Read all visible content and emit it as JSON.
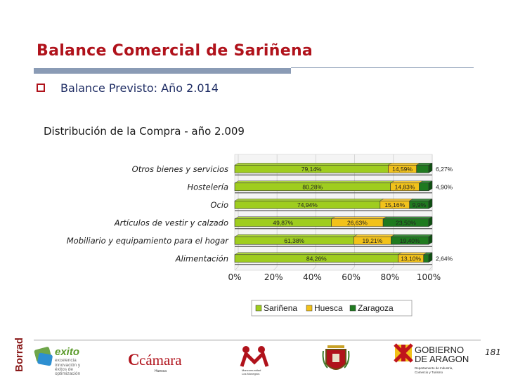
{
  "slide": {
    "title": "Balance Comercial de Sariñena",
    "bullet": "Balance Previsto: Año 2.014",
    "subtitle": "Distribución de la Compra - año 2.009",
    "page_number": "181"
  },
  "footer": {
    "watermark": "Borrador",
    "logos": [
      {
        "name": "exito",
        "text_main": "exito",
        "lines": [
          "excelencia",
          "innovación y",
          "éxitos de",
          "optimización"
        ]
      },
      {
        "name": "camara",
        "text_main": "cámara",
        "sub": "Huesca"
      },
      {
        "name": "mancomunidad",
        "text_main": "M",
        "lines": [
          "Mancomunidad",
          "Los Monegros"
        ]
      },
      {
        "name": "coat-of-arms"
      },
      {
        "name": "gobierno-aragon",
        "lines": [
          "GOBIERNO",
          "DE ARAGON"
        ],
        "dept": [
          "Departamento de Industria,",
          "Comercio y Turismo"
        ]
      }
    ]
  },
  "colors": {
    "title": "#b0121b",
    "sarinena": "#9fcd1f",
    "huesca": "#f2c21a",
    "zaragoza": "#1f7a1f"
  },
  "chart_data": {
    "type": "bar",
    "orientation": "horizontal",
    "stacked": "percent",
    "categories": [
      "Otros bienes y servicios",
      "Hostelería",
      "Ocio",
      "Artículos de vestir y calzado",
      "Mobiliario y equipamiento para el hogar",
      "Alimentación"
    ],
    "series": [
      {
        "name": "Sariñena",
        "values": [
          79.14,
          80.28,
          74.94,
          49.87,
          61.38,
          84.26
        ],
        "labels": [
          "79,14%",
          "80,28%",
          "74,94%",
          "49,87%",
          "61,38%",
          "84,26%"
        ]
      },
      {
        "name": "Huesca",
        "values": [
          14.59,
          14.83,
          15.16,
          26.63,
          19.21,
          13.1
        ],
        "labels": [
          "14,59%",
          "14,83%",
          "15,16%",
          "26,63%",
          "19,21%",
          "13,10%"
        ]
      },
      {
        "name": "Zaragoza",
        "values": [
          6.27,
          4.9,
          9.9,
          23.5,
          19.4,
          2.64
        ],
        "labels": [
          "6,27%",
          "4,90%",
          "9,9%",
          "23,50%",
          "19,40%",
          "2,64%"
        ]
      }
    ],
    "x_ticks": [
      "0%",
      "20%",
      "40%",
      "60%",
      "80%",
      "100%"
    ],
    "xlim": [
      0,
      100
    ],
    "grid": true,
    "legend_position": "bottom"
  }
}
